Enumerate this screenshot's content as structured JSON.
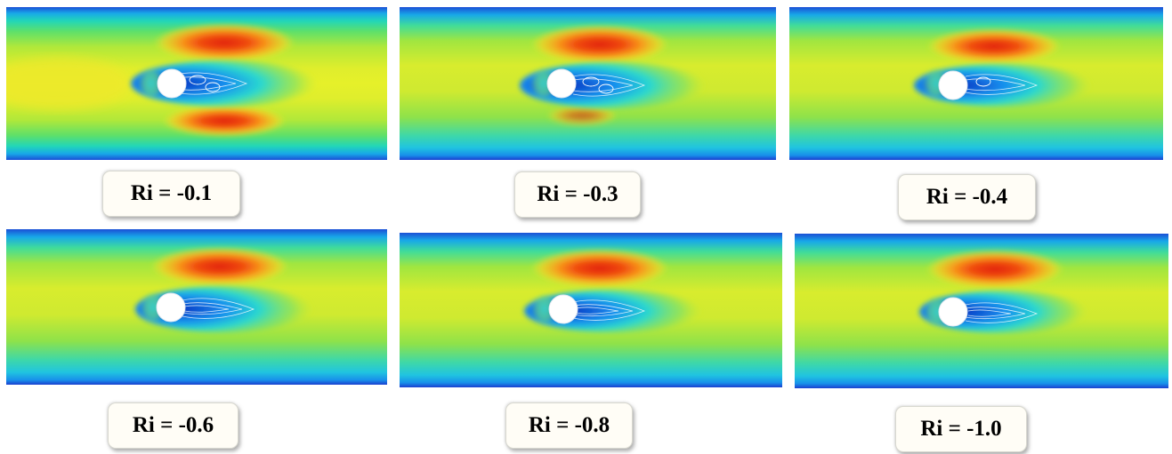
{
  "panels": [
    {
      "label": "Ri = -0.1"
    },
    {
      "label": "Ri = -0.3"
    },
    {
      "label": "Ri = -0.4"
    },
    {
      "label": "Ri = -0.6"
    },
    {
      "label": "Ri = -0.8"
    },
    {
      "label": "Ri = -1.0"
    }
  ]
}
